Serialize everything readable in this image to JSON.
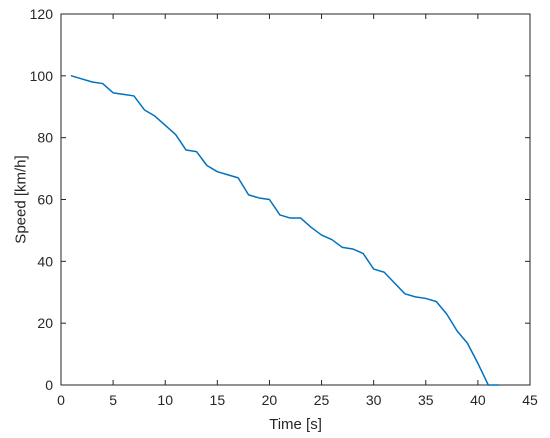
{
  "chart_data": {
    "type": "line",
    "title": "",
    "xlabel": "Time [s]",
    "ylabel": "Speed [km/h]",
    "xlim": [
      0,
      45
    ],
    "ylim": [
      0,
      120
    ],
    "xticks": [
      0,
      5,
      10,
      15,
      20,
      25,
      30,
      35,
      40,
      45
    ],
    "yticks": [
      0,
      20,
      40,
      60,
      80,
      100,
      120
    ],
    "xtick_labels": [
      "0",
      "5",
      "10",
      "15",
      "20",
      "25",
      "30",
      "35",
      "40",
      "45"
    ],
    "ytick_labels": [
      "0",
      "20",
      "40",
      "60",
      "80",
      "100",
      "120"
    ],
    "grid": false,
    "legend": "none",
    "colors": {
      "series": "#0072BD",
      "axes": "#262626",
      "background": "#ffffff"
    },
    "series": [
      {
        "x": [
          1,
          2,
          3,
          4,
          5,
          6,
          7,
          8,
          9,
          10,
          11,
          12,
          13,
          14,
          15,
          16,
          17,
          18,
          19,
          20,
          21,
          22,
          23,
          24,
          25,
          26,
          27,
          28,
          29,
          30,
          31,
          32,
          33,
          34,
          35,
          36,
          37,
          38,
          39,
          40,
          41,
          42
        ],
        "values": [
          100,
          99,
          98,
          97.5,
          94.5,
          94,
          93.5,
          89,
          87,
          84,
          81,
          76,
          75.5,
          71,
          69,
          68,
          67,
          61.5,
          60.5,
          60,
          55,
          54,
          54,
          51,
          48.5,
          47,
          44.5,
          44,
          42.5,
          37.5,
          36.5,
          33,
          29.5,
          28.5,
          28,
          27,
          23,
          17.5,
          13.5,
          7,
          0,
          0
        ]
      }
    ]
  }
}
